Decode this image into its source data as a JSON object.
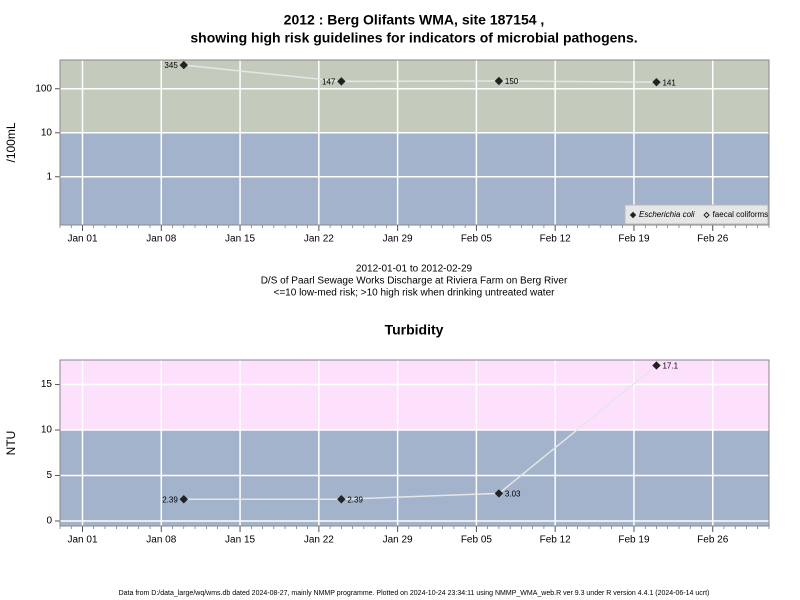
{
  "chart_data": [
    {
      "type": "line",
      "title": "2012 : Berg Olifants WMA, site 187154 ,",
      "subtitle": "showing high risk guidelines for indicators of microbial pathogens.",
      "ylabel": "/100mL",
      "log_y": true,
      "x": [
        "2012-01-10",
        "2012-01-24",
        "2012-02-07",
        "2012-02-21"
      ],
      "xlim": [
        "2011-12-30",
        "2012-03-02"
      ],
      "xticks": [
        {
          "value": "2012-01-01",
          "label": "Jan 01"
        },
        {
          "value": "2012-01-08",
          "label": "Jan 08"
        },
        {
          "value": "2012-01-15",
          "label": "Jan 15"
        },
        {
          "value": "2012-01-22",
          "label": "Jan 22"
        },
        {
          "value": "2012-01-29",
          "label": "Jan 29"
        },
        {
          "value": "2012-02-05",
          "label": "Feb 05"
        },
        {
          "value": "2012-02-12",
          "label": "Feb 12"
        },
        {
          "value": "2012-02-19",
          "label": "Feb 19"
        },
        {
          "value": "2012-02-26",
          "label": "Feb 26"
        }
      ],
      "ylim": [
        0.08,
        450
      ],
      "yticks": [
        1,
        10,
        100
      ],
      "threshold": 10,
      "above_color": "#c3cbbd",
      "below_color": "#a2b3cb",
      "grid": true,
      "line_color": "#e6e6e6",
      "series": [
        {
          "name": "Escherichia coli",
          "color": "#222222",
          "marker": "filled",
          "values": [
            345,
            147,
            150,
            141
          ]
        },
        {
          "name": "faecal coliforms",
          "color": "#222222",
          "marker": "open",
          "values": [
            null,
            null,
            null,
            null
          ]
        }
      ],
      "legend": "bottom-right",
      "xlabel": "2012-01-01 to 2012-02-29",
      "notes": [
        "D/S of Paarl Sewage Works Discharge at Riviera Farm on Berg River",
        "<=10 low-med risk; >10 high risk when drinking untreated water"
      ]
    },
    {
      "type": "line",
      "title": "Turbidity",
      "ylabel": "NTU",
      "log_y": false,
      "x": [
        "2012-01-10",
        "2012-01-24",
        "2012-02-07",
        "2012-02-21"
      ],
      "xlim": [
        "2011-12-30",
        "2012-03-02"
      ],
      "xticks": [
        {
          "value": "2012-01-01",
          "label": "Jan 01"
        },
        {
          "value": "2012-01-08",
          "label": "Jan 08"
        },
        {
          "value": "2012-01-15",
          "label": "Jan 15"
        },
        {
          "value": "2012-01-22",
          "label": "Jan 22"
        },
        {
          "value": "2012-01-29",
          "label": "Jan 29"
        },
        {
          "value": "2012-02-05",
          "label": "Feb 05"
        },
        {
          "value": "2012-02-12",
          "label": "Feb 12"
        },
        {
          "value": "2012-02-19",
          "label": "Feb 19"
        },
        {
          "value": "2012-02-26",
          "label": "Feb 26"
        }
      ],
      "ylim": [
        -0.55,
        17.7
      ],
      "yticks": [
        0,
        5,
        10,
        15
      ],
      "threshold": 10,
      "above_color": "#fce0fc",
      "below_color": "#a2b3cb",
      "grid": true,
      "line_color": "#e6e6e6",
      "series": [
        {
          "name": "Turbidity",
          "color": "#222222",
          "marker": "filled",
          "values": [
            2.39,
            2.39,
            3.03,
            17.1
          ]
        }
      ]
    }
  ],
  "footer": "Data from D:/data_large/wq/wms.db dated 2024-08-27, mainly NMMP programme. Plotted on 2024-10-24 23:34:11 using NMMP_WMA_web.R ver 9.3 under R version 4.4.1 (2024-06-14 ucrt)"
}
